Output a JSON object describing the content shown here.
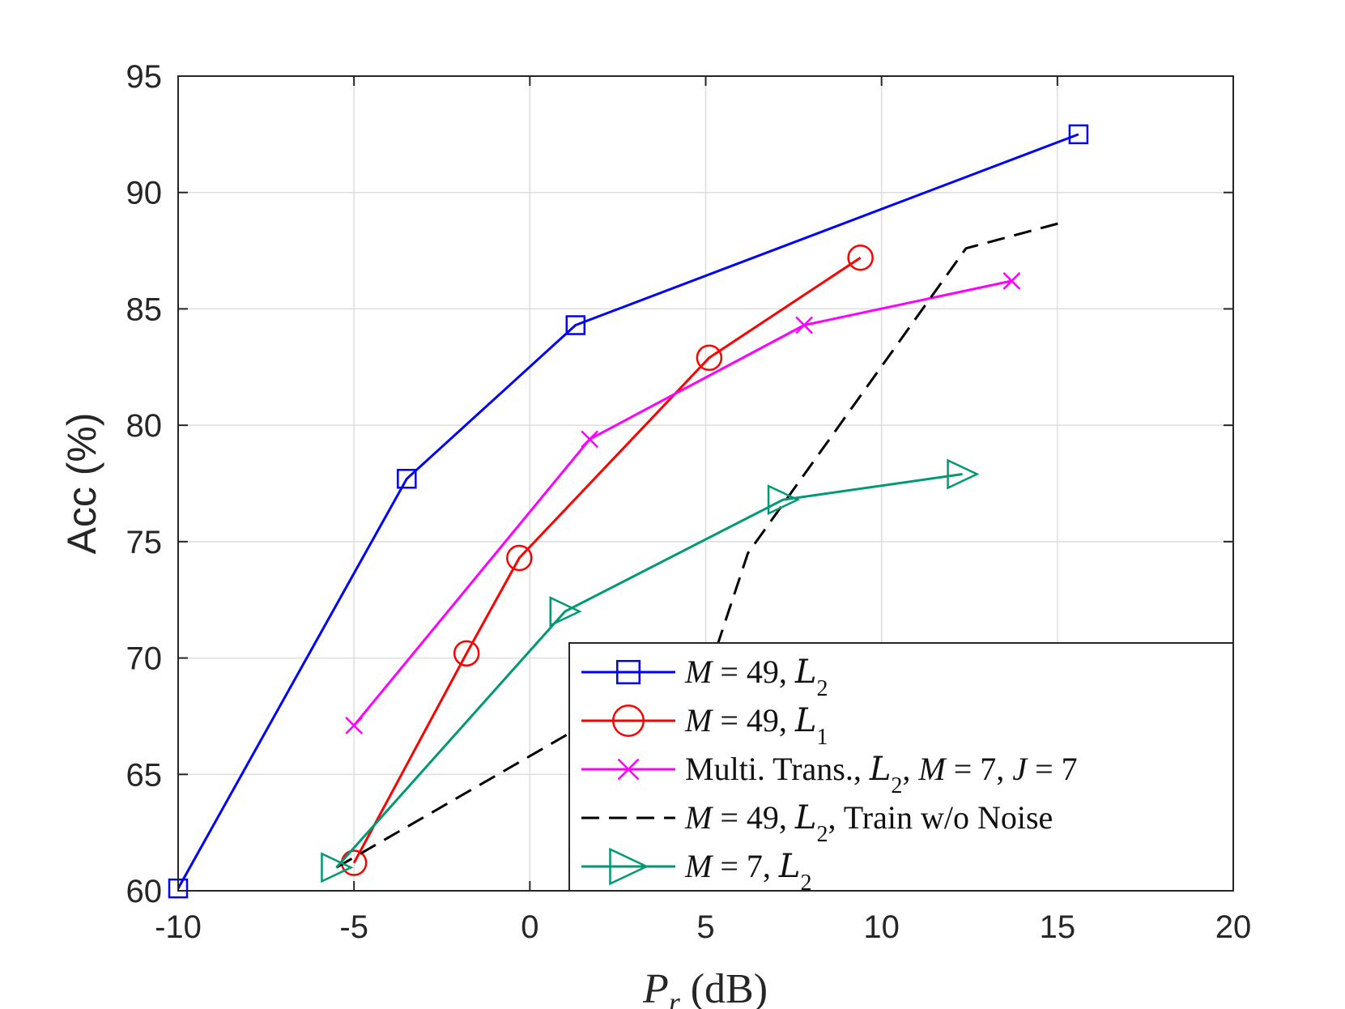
{
  "chart_data": {
    "type": "line",
    "title": "",
    "xlabel": "P_r (dB)",
    "xlabel_parts": {
      "var": "P",
      "sub": "r",
      "unit": "(dB)"
    },
    "ylabel": "Acc (%)",
    "xlim": [
      -10,
      20
    ],
    "ylim": [
      60,
      95
    ],
    "xticks": [
      -10,
      -5,
      0,
      5,
      10,
      15,
      20
    ],
    "xtick_labels": [
      "-10",
      "-5",
      "0",
      "5",
      "10",
      "15",
      "20"
    ],
    "yticks": [
      60,
      65,
      70,
      75,
      80,
      85,
      90,
      95
    ],
    "ytick_labels": [
      "60",
      "65",
      "70",
      "75",
      "80",
      "85",
      "90",
      "95"
    ],
    "grid": true,
    "legend_position": "bottom-right",
    "series": [
      {
        "name": "M = 49, L2",
        "legend_parts": [
          [
            "i",
            "M"
          ],
          [
            "r",
            " = 49, "
          ],
          [
            "s",
            "L"
          ],
          [
            "sub",
            "2"
          ]
        ],
        "color": "#0000ff",
        "marker": "square",
        "dash": "solid",
        "x": [
          -10,
          -3.5,
          1.3,
          15.6
        ],
        "y": [
          60.1,
          77.7,
          84.3,
          92.5
        ]
      },
      {
        "name": "M = 49, L1",
        "legend_parts": [
          [
            "i",
            "M"
          ],
          [
            "r",
            " = 49, "
          ],
          [
            "s",
            "L"
          ],
          [
            "sub",
            "1"
          ]
        ],
        "color": "#ff0000",
        "marker": "circle",
        "dash": "solid",
        "x": [
          -5,
          -1.8,
          -0.3,
          5.1,
          9.4
        ],
        "y": [
          61.2,
          70.2,
          74.3,
          82.9,
          87.2
        ]
      },
      {
        "name": "Multi. Trans., L2, M = 7, J = 7",
        "legend_parts": [
          [
            "r",
            "Multi. Trans., "
          ],
          [
            "s",
            "L"
          ],
          [
            "sub",
            "2"
          ],
          [
            "r",
            ", "
          ],
          [
            "i",
            "M"
          ],
          [
            "r",
            " = 7, "
          ],
          [
            "i",
            "J"
          ],
          [
            "r",
            " = 7"
          ]
        ],
        "color": "#ff00ff",
        "marker": "x",
        "dash": "solid",
        "x": [
          -5,
          1.7,
          7.8,
          13.7
        ],
        "y": [
          67.1,
          79.4,
          84.3,
          86.2
        ]
      },
      {
        "name": "M = 49, L2, Train w/o Noise",
        "legend_parts": [
          [
            "i",
            "M"
          ],
          [
            "r",
            " = 49, "
          ],
          [
            "s",
            "L"
          ],
          [
            "sub",
            "2"
          ],
          [
            "r",
            ", Train w/o Noise"
          ]
        ],
        "color": "#000000",
        "marker": "none",
        "dash": "dashed",
        "x": [
          -5.5,
          5.3,
          6.2,
          12.4,
          15.1
        ],
        "y": [
          61.0,
          70.4,
          74.5,
          87.6,
          88.7
        ]
      },
      {
        "name": "M = 7, L2",
        "legend_parts": [
          [
            "i",
            "M"
          ],
          [
            "r",
            " = 7, "
          ],
          [
            "s",
            "L"
          ],
          [
            "sub",
            "2"
          ]
        ],
        "color": "#009973",
        "marker": "triangle-right",
        "dash": "solid",
        "x": [
          -5.5,
          1.0,
          7.2,
          12.3
        ],
        "y": [
          61.0,
          72.0,
          76.8,
          77.9
        ]
      }
    ]
  }
}
